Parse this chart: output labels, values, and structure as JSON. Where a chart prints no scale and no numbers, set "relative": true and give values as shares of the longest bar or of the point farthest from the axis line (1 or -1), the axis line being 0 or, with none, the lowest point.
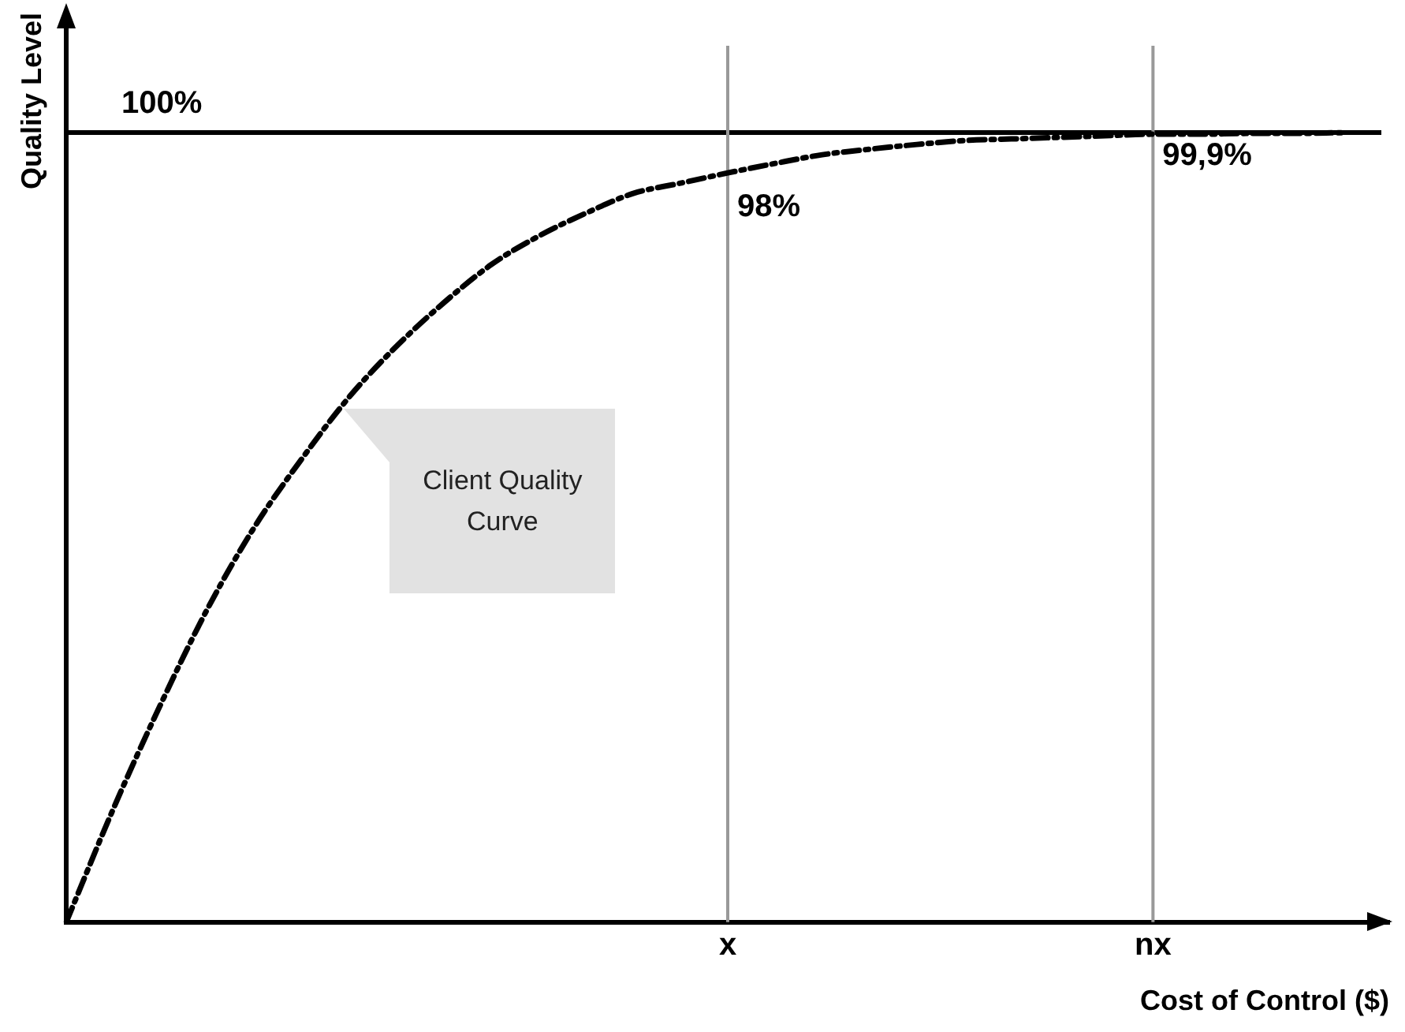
{
  "chart_data": {
    "type": "line",
    "relative": true,
    "xlabel": "Cost of Control ($)",
    "ylabel": "Quality Level",
    "categories": [
      null,
      null,
      null,
      null,
      null,
      null,
      null,
      null,
      null,
      null,
      null,
      null,
      null,
      null,
      "x",
      null,
      null,
      null,
      null,
      null,
      null,
      null,
      null,
      "nx",
      null,
      null,
      null,
      null,
      null
    ],
    "series": [
      {
        "color": "#000000",
        "values": [
          0,
          0.144,
          0.276,
          0.398,
          0.502,
          0.588,
          0.666,
          0.73,
          0.785,
          0.833,
          0.869,
          0.898,
          0.923,
          0.936,
          0.949,
          0.961,
          0.972,
          0.979,
          0.985,
          0.99,
          0.992,
          0.994,
          0.996,
          0.998,
          0.998,
          0.999,
          0.999,
          1,
          null
        ]
      }
    ],
    "ref_lines": [
      {
        "axis": "y",
        "value": 1,
        "label": "100%",
        "color": "#000000"
      },
      {
        "axis": "x",
        "value": "x",
        "color": "#999999"
      },
      {
        "axis": "x",
        "value": "nx",
        "color": "#999999"
      }
    ],
    "annotations": [
      {
        "text": "98%",
        "x": "x",
        "y": 0.949
      },
      {
        "text": "99,9%",
        "x": "nx",
        "y": 0.998
      },
      "Client Quality Curve"
    ],
    "grid": false,
    "legend": false,
    "marker": "none",
    "line_style": "dashed"
  }
}
